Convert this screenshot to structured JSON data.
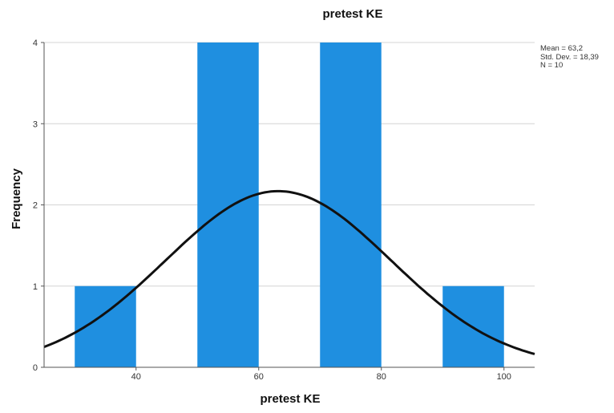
{
  "chart_data": {
    "type": "histogram",
    "title": "pretest KE",
    "xlabel": "pretest KE",
    "ylabel": "Frequency",
    "x_range": [
      25,
      105
    ],
    "y_range": [
      0,
      4
    ],
    "x_ticks": [
      40,
      60,
      80,
      100
    ],
    "y_ticks": [
      0,
      1,
      2,
      3,
      4
    ],
    "grid": true,
    "bar_color": "#1f8fe0",
    "curve_color": "#111111",
    "bars": [
      {
        "x0": 30,
        "x1": 40,
        "count": 1
      },
      {
        "x0": 40,
        "x1": 50,
        "count": 0
      },
      {
        "x0": 50,
        "x1": 60,
        "count": 4
      },
      {
        "x0": 60,
        "x1": 70,
        "count": 0
      },
      {
        "x0": 70,
        "x1": 80,
        "count": 4
      },
      {
        "x0": 80,
        "x1": 90,
        "count": 0
      },
      {
        "x0": 90,
        "x1": 100,
        "count": 1
      }
    ],
    "normal_curve": {
      "mean": 63.2,
      "std": 18.39,
      "n": 10,
      "bin_width": 10
    }
  },
  "stats": {
    "mean": "Mean = 63,2",
    "std": "Std. Dev. = 18,39",
    "n": "N = 10"
  }
}
